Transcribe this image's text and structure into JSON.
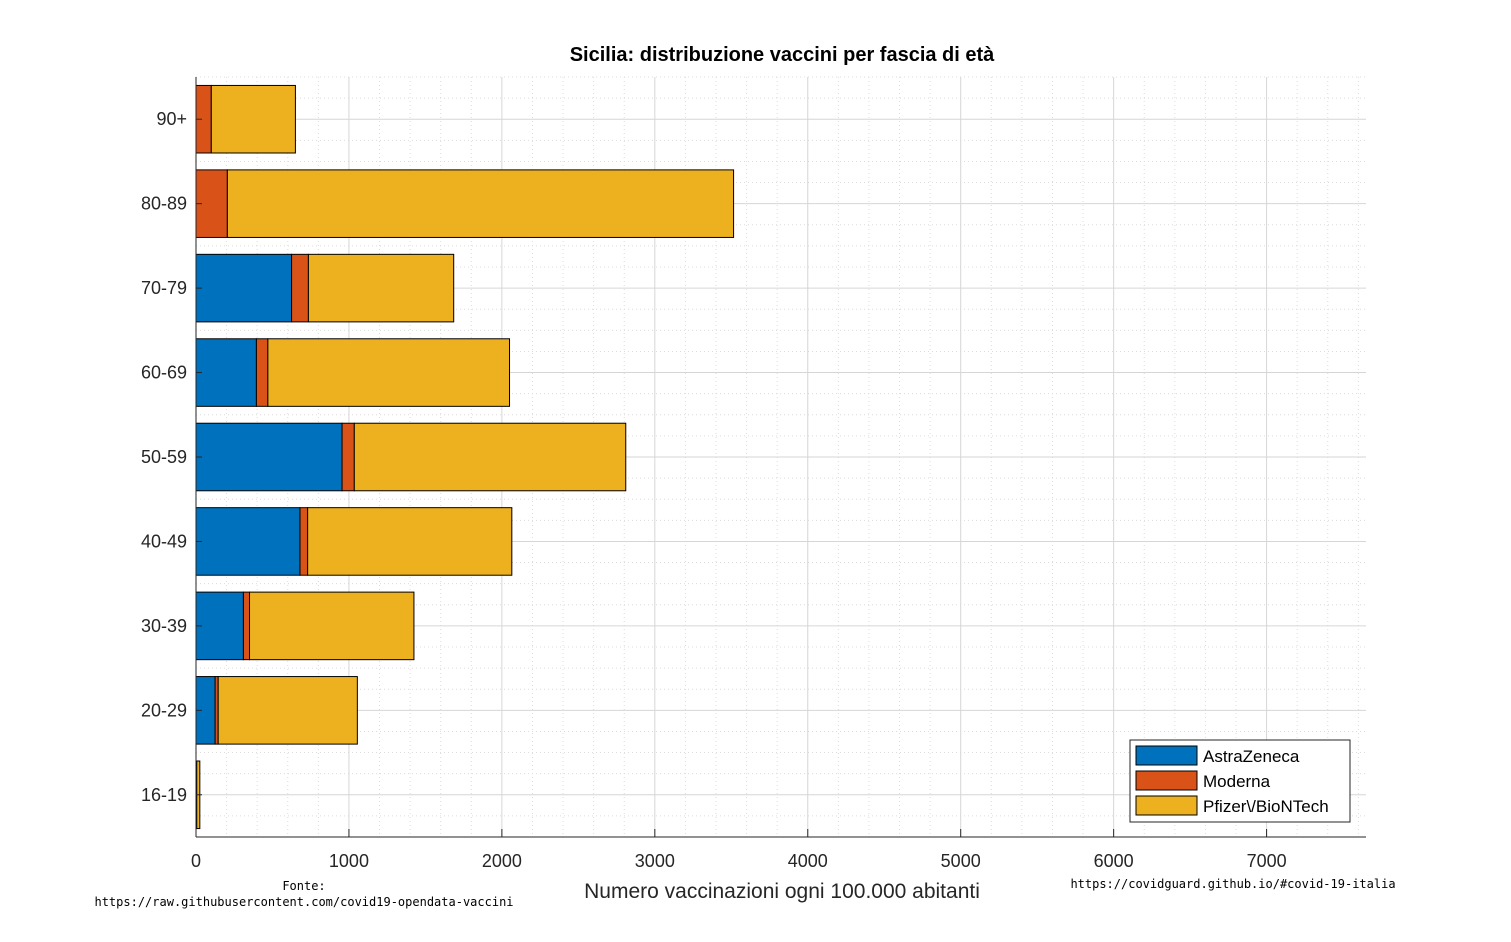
{
  "chart_data": {
    "type": "bar",
    "orientation": "horizontal",
    "stacked": true,
    "title": "Sicilia: distribuzione vaccini per fascia di età",
    "xlabel": "Numero vaccinazioni ogni 100.000 abitanti",
    "ylabel": "",
    "xlim": [
      0,
      7650
    ],
    "xticks": [
      0,
      1000,
      2000,
      3000,
      4000,
      5000,
      6000,
      7000
    ],
    "grid": true,
    "minor_grid": true,
    "legend_position": "bottom-right",
    "categories": [
      "90+",
      "80-89",
      "70-79",
      "60-69",
      "50-59",
      "40-49",
      "30-39",
      "20-29",
      "16-19"
    ],
    "series": [
      {
        "name": "AstraZeneca",
        "color": "#0072bd",
        "values": [
          0,
          0,
          625,
          395,
          955,
          680,
          310,
          125,
          0
        ]
      },
      {
        "name": "Moderna",
        "color": "#d95319",
        "values": [
          100,
          205,
          110,
          75,
          80,
          50,
          40,
          20,
          5
        ]
      },
      {
        "name": "Pfizer\\/BioNTech",
        "color": "#edb120",
        "values": [
          550,
          3310,
          950,
          1580,
          1775,
          1335,
          1075,
          910,
          20
        ]
      }
    ]
  },
  "annotations": {
    "source_label": "Fonte:",
    "source_url": "https://raw.githubusercontent.com/covid19-opendata-vaccini",
    "site_url": "https://covidguard.github.io/#covid-19-italia"
  }
}
